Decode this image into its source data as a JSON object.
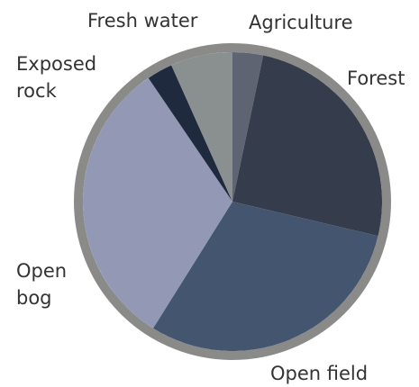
{
  "chart_data": {
    "type": "pie",
    "categories": [
      "Agriculture",
      "Forest",
      "Open field",
      "Open bog",
      "Exposed rock",
      "Fresh water"
    ],
    "values": [
      3.3,
      25.4,
      30.2,
      31.6,
      2.8,
      6.7
    ],
    "colors": [
      "#5e6472",
      "#353c4b",
      "#44556f",
      "#9398b4",
      "#1f2a3f",
      "#8a9090"
    ],
    "border_color": "#8a8a88"
  }
}
